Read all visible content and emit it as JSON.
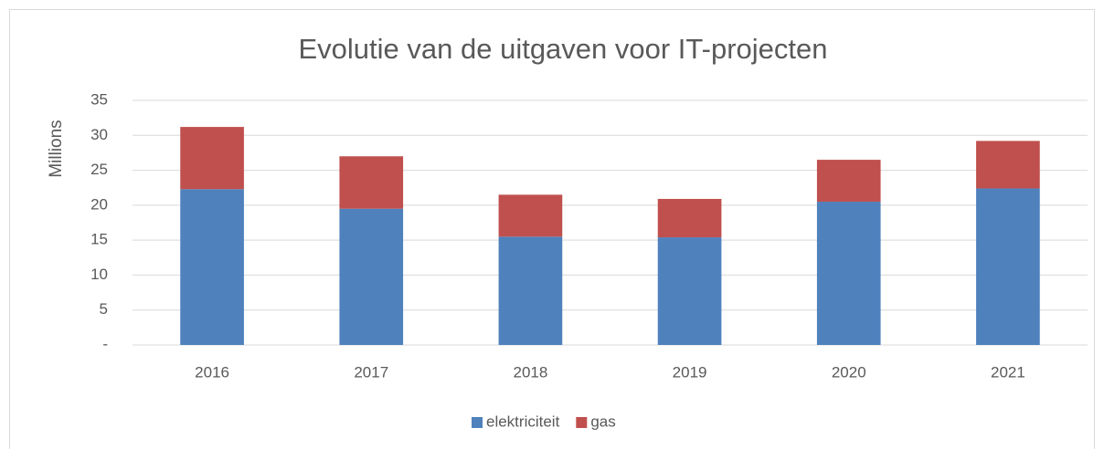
{
  "chart_data": {
    "type": "stacked_bar",
    "title": "Evolutie van de uitgaven voor IT-projecten",
    "y_label": "Millions",
    "categories": [
      "2016",
      "2017",
      "2018",
      "2019",
      "2020",
      "2021"
    ],
    "series": [
      {
        "name": "elektriciteit",
        "color": "#4f81bd",
        "values": [
          22.3,
          19.5,
          15.5,
          15.4,
          20.5,
          22.4
        ]
      },
      {
        "name": "gas",
        "color": "#c0504d",
        "values": [
          8.9,
          7.5,
          6.0,
          5.5,
          6.0,
          6.8
        ]
      }
    ],
    "ylim": [
      0,
      35
    ],
    "yticks": [
      {
        "value": 0,
        "label": "-"
      },
      5,
      10,
      15,
      20,
      25,
      30,
      35
    ],
    "grid": true,
    "legend": "bottom"
  }
}
